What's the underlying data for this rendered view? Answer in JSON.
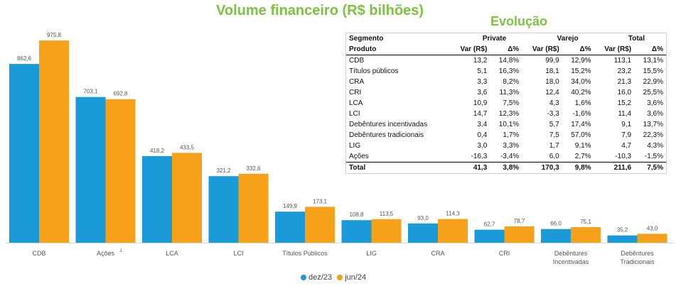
{
  "title": "Volume financeiro (R$ bilhões)",
  "chart_data": {
    "type": "bar",
    "categories": [
      "CDB",
      "Ações",
      "LCA",
      "LCI",
      "Títulos Públicos",
      "LIG",
      "CRA",
      "CRI",
      "Debêntures Incentivadas",
      "Debêntures Tradicionais"
    ],
    "category_lines": [
      [
        "CDB"
      ],
      [
        "Ações"
      ],
      [
        "LCA"
      ],
      [
        "LCI"
      ],
      [
        "Títulos Públicos"
      ],
      [
        "LIG"
      ],
      [
        "CRA"
      ],
      [
        "CRI"
      ],
      [
        "Debêntures",
        "Incentivadas"
      ],
      [
        "Debêntures",
        "Tradicionais"
      ]
    ],
    "category_superscripts": [
      "",
      "1",
      "",
      "",
      "",
      "",
      "",
      "",
      "",
      ""
    ],
    "series": [
      {
        "name": "dez/23",
        "color": "#1a9ad6",
        "values": [
          862.6,
          703.1,
          418.2,
          321.2,
          149.9,
          108.8,
          93.0,
          62.7,
          66.0,
          35.2
        ],
        "labels": [
          "862,6",
          "703,1",
          "418,2",
          "321,2",
          "149,9",
          "108,8",
          "93,0",
          "62,7",
          "66,0",
          "35,2"
        ]
      },
      {
        "name": "jun/24",
        "color": "#f7a11a",
        "values": [
          975.8,
          692.8,
          433.5,
          332.6,
          173.1,
          113.5,
          114.3,
          78.7,
          75.1,
          43.0
        ],
        "labels": [
          "975,8",
          "692,8",
          "433,5",
          "332,6",
          "173,1",
          "113,5",
          "114,3",
          "78,7",
          "75,1",
          "43,0"
        ]
      }
    ],
    "ylim": [
      0,
      1000
    ],
    "grid": false,
    "legend": "bottom-center"
  },
  "table": {
    "title": "Evolução",
    "group_headers": [
      "Segmento",
      "Private",
      "Varejo",
      "Total"
    ],
    "sub_headers": [
      "Produto",
      "Var (R$)",
      "Δ%",
      "Var (R$)",
      "Δ%",
      "Var (R$)",
      "Δ%"
    ],
    "rows": [
      [
        "CDB",
        "13,2",
        "14,8%",
        "99,9",
        "12,9%",
        "113,1",
        "13,1%"
      ],
      [
        "Títulos públicos",
        "5,1",
        "16,3%",
        "18,1",
        "15,2%",
        "23,2",
        "15,5%"
      ],
      [
        "CRA",
        "3,3",
        "8,2%",
        "18,0",
        "34,0%",
        "21,3",
        "22,9%"
      ],
      [
        "CRI",
        "3,6",
        "11,3%",
        "12,4",
        "40,2%",
        "16,0",
        "25,5%"
      ],
      [
        "LCA",
        "10,9",
        "7,5%",
        "4,3",
        "1,6%",
        "15,2",
        "3,6%"
      ],
      [
        "LCI",
        "14,7",
        "12,3%",
        "-3,3",
        "-1,6%",
        "11,4",
        "3,6%"
      ],
      [
        "Debêntures incentivadas",
        "3,4",
        "10,1%",
        "5,7",
        "17,4%",
        "9,1",
        "13,7%"
      ],
      [
        "Debêntures tradicionais",
        "0,4",
        "1,7%",
        "7,5",
        "57,0%",
        "7,9",
        "22,3%"
      ],
      [
        "LIG",
        "3,0",
        "3,3%",
        "1,7",
        "9,1%",
        "4,7",
        "4,3%"
      ],
      [
        "Ações",
        "-16,3",
        "-3,4%",
        "6,0",
        "2,7%",
        "-10,3",
        "-1,5%"
      ]
    ],
    "total": [
      "Total",
      "41,3",
      "3,8%",
      "170,3",
      "9,8%",
      "211,6",
      "7,5%"
    ]
  }
}
